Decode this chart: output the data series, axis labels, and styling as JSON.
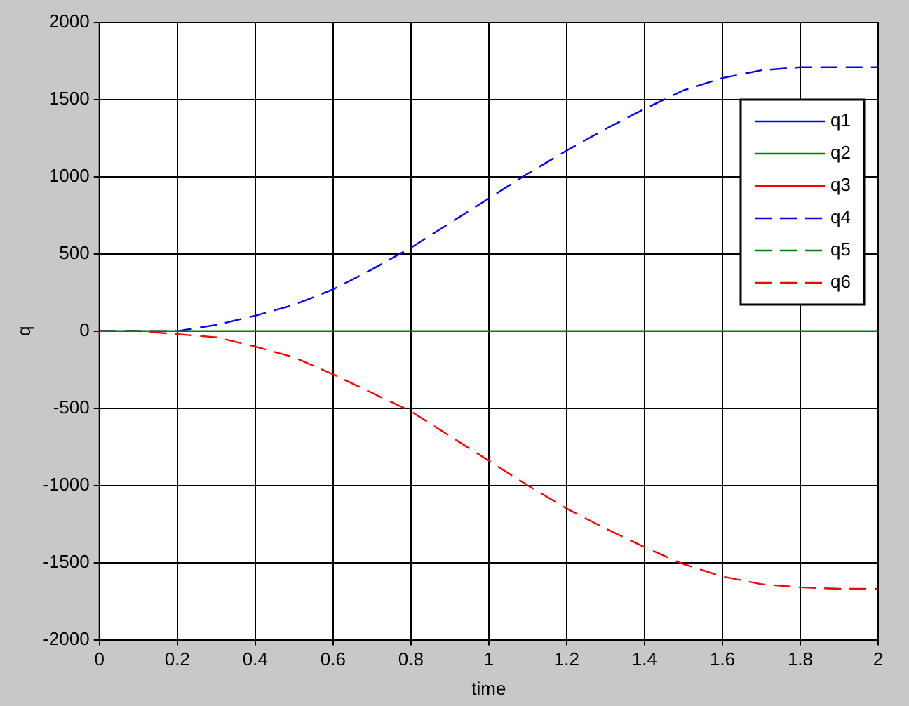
{
  "chart_data": {
    "type": "line",
    "xlabel": "time",
    "ylabel": "q",
    "xlim": [
      0,
      2
    ],
    "ylim": [
      -2000,
      2000
    ],
    "xticks": [
      0,
      0.2,
      0.4,
      0.6,
      0.8,
      1,
      1.2,
      1.4,
      1.6,
      1.8,
      2
    ],
    "yticks": [
      -2000,
      -1500,
      -1000,
      -500,
      0,
      500,
      1000,
      1500,
      2000
    ],
    "grid": true,
    "legend": "top right",
    "marker": "none",
    "series": [
      {
        "name": "q1",
        "color": "#0000ff",
        "line_style": "solid"
      },
      {
        "name": "q2",
        "color": "#008000",
        "line_style": "solid",
        "x": [
          0,
          2
        ],
        "values": [
          0,
          0
        ]
      },
      {
        "name": "q3",
        "color": "#ff0000",
        "line_style": "solid"
      },
      {
        "name": "q4",
        "color": "#0000ff",
        "line_style": "dashed",
        "x": [
          0,
          0.1,
          0.2,
          0.3,
          0.4,
          0.5,
          0.6,
          0.7,
          0.8,
          0.9,
          1,
          1.1,
          1.2,
          1.3,
          1.4,
          1.5,
          1.6,
          1.7,
          1.8,
          1.9,
          2
        ],
        "values": [
          0,
          0,
          0,
          40,
          100,
          170,
          270,
          400,
          540,
          700,
          860,
          1020,
          1170,
          1310,
          1440,
          1560,
          1640,
          1690,
          1710,
          1710,
          1710
        ]
      },
      {
        "name": "q5",
        "color": "#008000",
        "line_style": "dashed"
      },
      {
        "name": "q6",
        "color": "#ff0000",
        "line_style": "dashed",
        "x": [
          0,
          0.1,
          0.2,
          0.3,
          0.4,
          0.5,
          0.6,
          0.7,
          0.8,
          0.9,
          1,
          1.1,
          1.2,
          1.3,
          1.4,
          1.5,
          1.6,
          1.7,
          1.8,
          1.9,
          2
        ],
        "values": [
          0,
          0,
          -20,
          -40,
          -100,
          -170,
          -280,
          -400,
          -520,
          -680,
          -840,
          -1000,
          -1150,
          -1280,
          -1400,
          -1510,
          -1590,
          -1640,
          -1660,
          -1670,
          -1670
        ]
      }
    ]
  }
}
